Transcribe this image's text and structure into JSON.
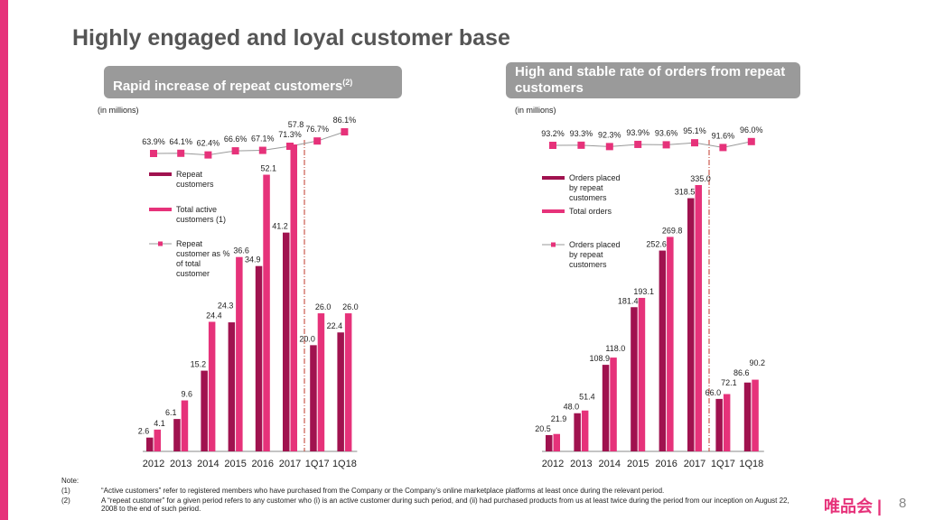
{
  "title": "Highly engaged and loyal customer base",
  "logo": "唯品会",
  "page_number": "8",
  "notes": {
    "label": "Note:",
    "items": [
      {
        "num": "(1)",
        "text": "“Active customers” refer to registered members who have purchased from the Company or the Company’s online marketplace platforms at least once during the relevant period."
      },
      {
        "num": "(2)",
        "text": "A “repeat customer” for a given period refers to any customer who (i) is an active customer during such period, and (ii) had purchased products from us at least twice during the period from our inception on August 22, 2008 to the end of such period."
      }
    ]
  },
  "colors": {
    "dark_bar": "#a0124f",
    "pink_bar": "#e6327a",
    "line": "#999999"
  },
  "chart_data": [
    {
      "type": "bar",
      "title": "Rapid increase of repeat customers",
      "title_sup": "(2)",
      "unit_label": "(in millions)",
      "categories": [
        "2012",
        "2013",
        "2014",
        "2015",
        "2016",
        "2017",
        "1Q17",
        "1Q18"
      ],
      "series": [
        {
          "name": "Repeat customers",
          "values": [
            2.6,
            6.1,
            15.2,
            24.3,
            34.9,
            41.2,
            20.0,
            22.4
          ]
        },
        {
          "name": "Total active customers (1)",
          "values": [
            4.1,
            9.6,
            24.4,
            36.6,
            52.1,
            57.8,
            26.0,
            26.0
          ]
        }
      ],
      "line_series": {
        "name": "Repeat customer as % of total customer",
        "values": [
          63.9,
          64.1,
          62.4,
          66.6,
          67.1,
          71.3,
          76.7,
          86.1
        ],
        "unit": "%"
      }
    },
    {
      "type": "bar",
      "title": "High and stable rate of orders from repeat customers",
      "unit_label": "(in millions)",
      "categories": [
        "2012",
        "2013",
        "2014",
        "2015",
        "2016",
        "2017",
        "1Q17",
        "1Q18"
      ],
      "series": [
        {
          "name": "Orders placed by repeat customers",
          "values": [
            20.5,
            48.0,
            108.9,
            181.4,
            252.6,
            318.5,
            66.0,
            86.6
          ]
        },
        {
          "name": "Total orders",
          "values": [
            21.9,
            51.4,
            118.0,
            193.1,
            269.8,
            335.0,
            72.1,
            90.2
          ]
        }
      ],
      "line_series": {
        "name": "Orders placed by repeat customers",
        "values": [
          93.2,
          93.3,
          92.3,
          93.9,
          93.6,
          95.1,
          91.6,
          96.0
        ],
        "unit": "%"
      }
    }
  ]
}
